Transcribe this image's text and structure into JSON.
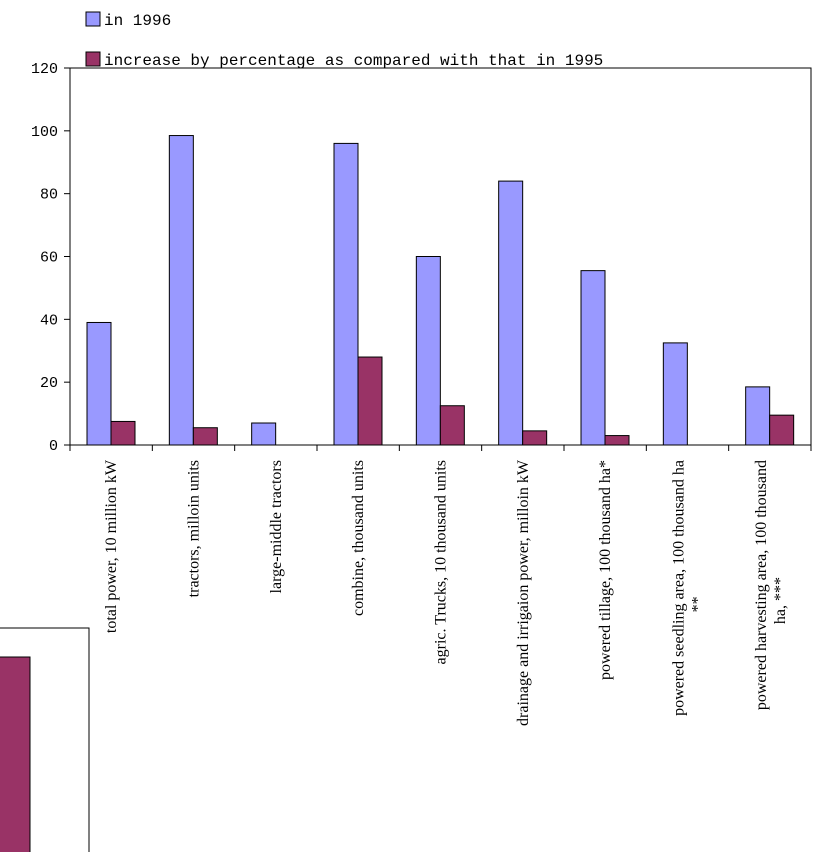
{
  "chart_data": {
    "type": "bar",
    "categories": [
      [
        "total power, 10 million kW"
      ],
      [
        "tractors, milloin units"
      ],
      [
        "large-middle tractors"
      ],
      [
        "combine, thousand units"
      ],
      [
        "agric. Trucks, 10 thousand units"
      ],
      [
        "drainage and irrigaion power, milloin kW"
      ],
      [
        "powered tillage, 100 thousand ha*"
      ],
      [
        "powered seedling area, 100 thousand ha",
        "**"
      ],
      [
        "powered harvesting area, 100 thousand",
        "ha, ***"
      ]
    ],
    "series": [
      {
        "name": "in 1996",
        "color": "#9999ff",
        "values": [
          39,
          98.5,
          7,
          96,
          60,
          84,
          55.5,
          32.5,
          18.5
        ]
      },
      {
        "name": "increase by percentage as compared with that in 1995",
        "color": "#993366",
        "values": [
          7.5,
          5.5,
          null,
          28,
          12.5,
          4.5,
          3,
          null,
          9.5
        ]
      }
    ],
    "ylim": [
      0,
      120
    ],
    "yticks": [
      "0",
      "20",
      "40",
      "60",
      "80",
      "100",
      "120"
    ],
    "grid": false,
    "legend_position": "top-left"
  }
}
